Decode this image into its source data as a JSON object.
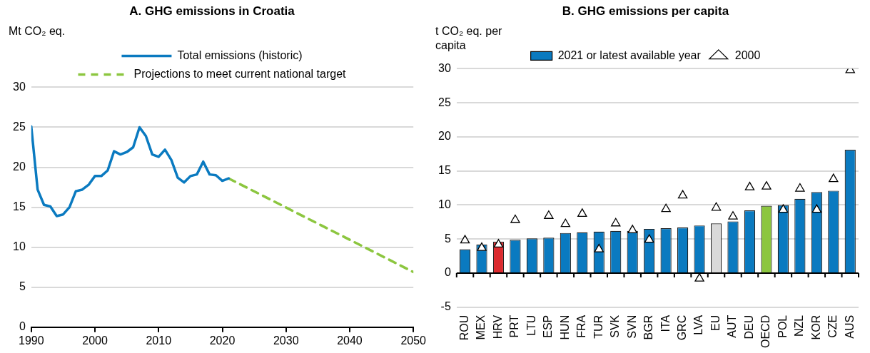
{
  "chart_data": [
    {
      "type": "line",
      "title": "A. GHG emissions in Croatia",
      "ylabel": "Mt CO₂ eq.",
      "xlim": [
        1990,
        2050
      ],
      "xticks": [
        1990,
        2000,
        2010,
        2020,
        2030,
        2040,
        2050
      ],
      "ylim": [
        0,
        30
      ],
      "yticks": [
        0,
        5,
        10,
        15,
        20,
        25,
        30
      ],
      "grid": "y",
      "legend": "top",
      "marker": "none",
      "series": [
        {
          "name": "Total emissions (historic)",
          "color": "#0a7ac0",
          "line_style": "solid",
          "x": [
            1990,
            1991,
            1992,
            1993,
            1994,
            1995,
            1996,
            1997,
            1998,
            1999,
            2000,
            2001,
            2002,
            2003,
            2004,
            2005,
            2006,
            2007,
            2008,
            2009,
            2010,
            2011,
            2012,
            2013,
            2014,
            2015,
            2016,
            2017,
            2018,
            2019,
            2020,
            2021
          ],
          "values": [
            25.1,
            17.2,
            15.3,
            15.1,
            13.9,
            14.1,
            15.0,
            17.0,
            17.2,
            17.8,
            18.9,
            18.9,
            19.6,
            22.0,
            21.6,
            21.9,
            22.5,
            25.0,
            23.9,
            21.6,
            21.3,
            22.2,
            20.9,
            18.7,
            18.1,
            18.9,
            19.1,
            20.7,
            19.1,
            19.0,
            18.3,
            18.6
          ]
        },
        {
          "name": "Projections to meet current national target",
          "color": "#8cc63f",
          "line_style": "dashed",
          "x": [
            2021,
            2050
          ],
          "values": [
            18.6,
            6.9
          ]
        }
      ]
    },
    {
      "type": "bar",
      "title": "B. GHG emissions per capita",
      "ylabel": "t CO₂ eq. per capita",
      "categories": [
        "ROU",
        "MEX",
        "HRV",
        "PRT",
        "LTU",
        "ESP",
        "HUN",
        "FRA",
        "TUR",
        "SVK",
        "SVN",
        "BGR",
        "ITA",
        "GRC",
        "LVA",
        "EU",
        "AUT",
        "DEU",
        "OECD",
        "POL",
        "NZL",
        "KOR",
        "CZE",
        "AUS"
      ],
      "ylim": [
        -5,
        30
      ],
      "yticks": [
        -5,
        0,
        5,
        10,
        15,
        20,
        25,
        30
      ],
      "grid": "y",
      "legend": "top",
      "series": [
        {
          "name": "2021 or latest available year",
          "type": "bar",
          "color": "#0a7ac0",
          "colors": [
            "#0a7ac0",
            "#0a7ac0",
            "#dc2b2f",
            "#0a7ac0",
            "#0a7ac0",
            "#0a7ac0",
            "#0a7ac0",
            "#0a7ac0",
            "#0a7ac0",
            "#0a7ac0",
            "#0a7ac0",
            "#0a7ac0",
            "#0a7ac0",
            "#0a7ac0",
            "#0a7ac0",
            "#d9d9d9",
            "#0a7ac0",
            "#0a7ac0",
            "#8cc63f",
            "#0a7ac0",
            "#0a7ac0",
            "#0a7ac0",
            "#0a7ac0",
            "#0a7ac0"
          ],
          "values": [
            3.5,
            4.2,
            4.6,
            4.9,
            5.1,
            5.2,
            5.9,
            6.0,
            6.1,
            6.2,
            6.2,
            6.5,
            6.6,
            6.7,
            7.0,
            7.3,
            7.6,
            9.2,
            9.9,
            10.0,
            10.9,
            11.9,
            12.1,
            18.1
          ]
        },
        {
          "name": "2000",
          "type": "scatter",
          "marker": "triangle",
          "color": "#ffffff",
          "values": [
            4.8,
            3.7,
            4.2,
            7.8,
            null,
            8.4,
            7.2,
            8.7,
            3.5,
            7.3,
            6.3,
            4.9,
            9.4,
            11.4,
            -0.8,
            9.6,
            8.3,
            12.6,
            12.7,
            9.3,
            12.4,
            9.3,
            13.8,
            29.8
          ]
        }
      ]
    }
  ]
}
